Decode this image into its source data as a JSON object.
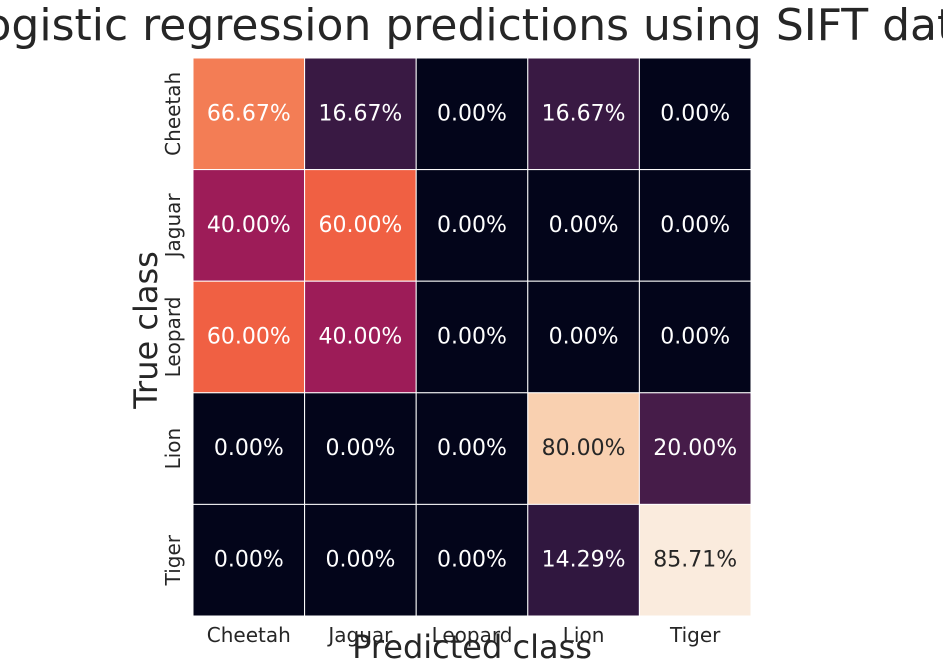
{
  "chart_data": {
    "type": "heatmap",
    "title": "Logistic regression predictions using SIFT data",
    "xlabel": "Predicted class",
    "ylabel": "True class",
    "x_categories": [
      "Cheetah",
      "Jaguar",
      "Leopard",
      "Lion",
      "Tiger"
    ],
    "y_categories": [
      "Cheetah",
      "Jaguar",
      "Leopard",
      "Lion",
      "Tiger"
    ],
    "values": [
      [
        66.67,
        16.67,
        0.0,
        16.67,
        0.0
      ],
      [
        40.0,
        60.0,
        0.0,
        0.0,
        0.0
      ],
      [
        60.0,
        40.0,
        0.0,
        0.0,
        0.0
      ],
      [
        0.0,
        0.0,
        0.0,
        80.0,
        20.0
      ],
      [
        0.0,
        0.0,
        0.0,
        14.29,
        85.71
      ]
    ],
    "annotations": [
      [
        "66.67%",
        "16.67%",
        "0.00%",
        "16.67%",
        "0.00%"
      ],
      [
        "40.00%",
        "60.00%",
        "0.00%",
        "0.00%",
        "0.00%"
      ],
      [
        "60.00%",
        "40.00%",
        "0.00%",
        "0.00%",
        "0.00%"
      ],
      [
        "0.00%",
        "0.00%",
        "0.00%",
        "80.00%",
        "20.00%"
      ],
      [
        "0.00%",
        "0.00%",
        "0.00%",
        "14.29%",
        "85.71%"
      ]
    ],
    "value_range": [
      0,
      85.71
    ],
    "colormap": "rocket",
    "colorbar": false,
    "cell_border_color": "#ffffff",
    "annotation_colors": {
      "light": "#ffffff",
      "dark": "#262626"
    },
    "text_color": "#262626"
  }
}
